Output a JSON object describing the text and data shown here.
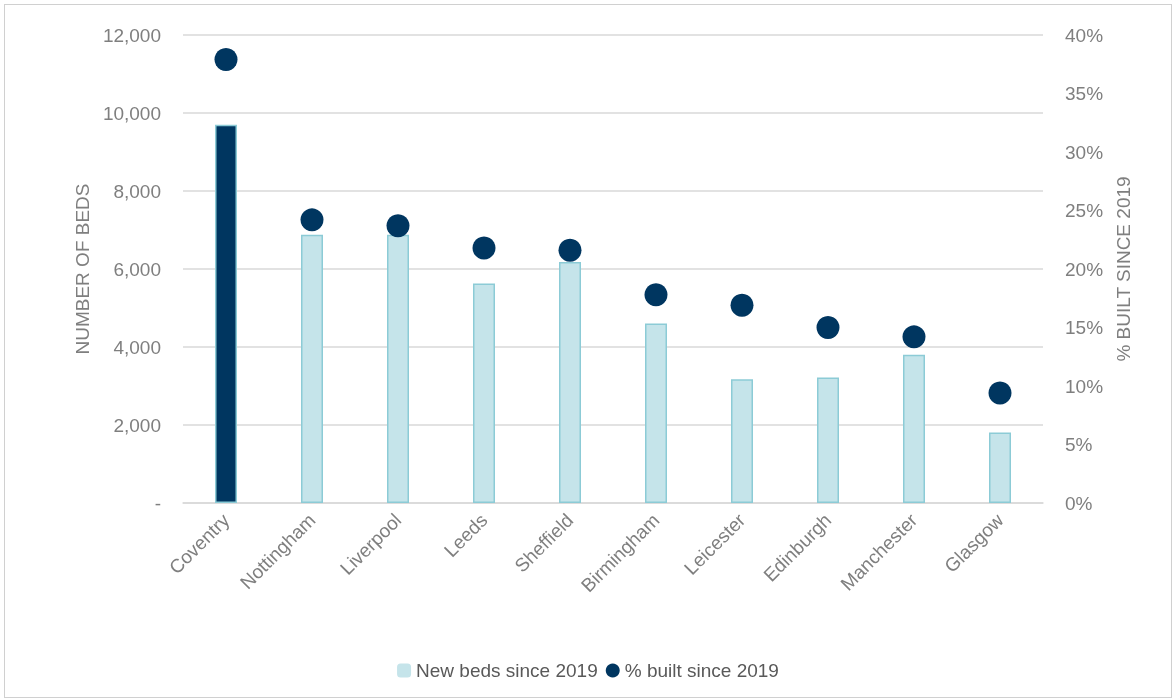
{
  "chart_data": {
    "type": "bar",
    "categories": [
      "Coventry",
      "Nottingham",
      "Liverpool",
      "Leeds",
      "Sheffield",
      "Birmingham",
      "Leicester",
      "Edinburgh",
      "Manchester",
      "Glasgow"
    ],
    "series": [
      {
        "name": "New beds since 2019",
        "color": "#c5e4ea",
        "colors": [
          "#003660",
          "#c5e4ea",
          "#c5e4ea",
          "#c5e4ea",
          "#c5e4ea",
          "#c5e4ea",
          "#c5e4ea",
          "#c5e4ea",
          "#c5e4ea",
          "#c5e4ea"
        ],
        "values": [
          9700,
          6880,
          6880,
          5630,
          6180,
          4600,
          3170,
          3220,
          3800,
          1810
        ]
      },
      {
        "name": "% built since 2019",
        "type": "scatter",
        "axis": "y2",
        "color": "#003660",
        "values": [
          37.9,
          24.2,
          23.7,
          21.8,
          21.6,
          17.8,
          16.9,
          15.0,
          14.2,
          9.4
        ]
      }
    ],
    "ylabel": "NUMBER OF BEDS",
    "y2label": "% BUILT SINCE 2019",
    "ylim": [
      0,
      12000
    ],
    "yticks": [
      {
        "value": 0,
        "label": "-"
      },
      {
        "value": 2000,
        "label": "2,000"
      },
      {
        "value": 4000,
        "label": "4,000"
      },
      {
        "value": 6000,
        "label": "6,000"
      },
      {
        "value": 8000,
        "label": "8,000"
      },
      {
        "value": 10000,
        "label": "10,000"
      },
      {
        "value": 12000,
        "label": "12,000"
      }
    ],
    "y2lim": [
      0,
      40
    ],
    "y2ticks": [
      {
        "value": 0,
        "label": "0%"
      },
      {
        "value": 5,
        "label": "5%"
      },
      {
        "value": 10,
        "label": "10%"
      },
      {
        "value": 15,
        "label": "15%"
      },
      {
        "value": 20,
        "label": "20%"
      },
      {
        "value": 25,
        "label": "25%"
      },
      {
        "value": 30,
        "label": "30%"
      },
      {
        "value": 35,
        "label": "35%"
      },
      {
        "value": 40,
        "label": "40%"
      }
    ],
    "grid": "y",
    "legend": "bottom",
    "marker": "circle"
  }
}
